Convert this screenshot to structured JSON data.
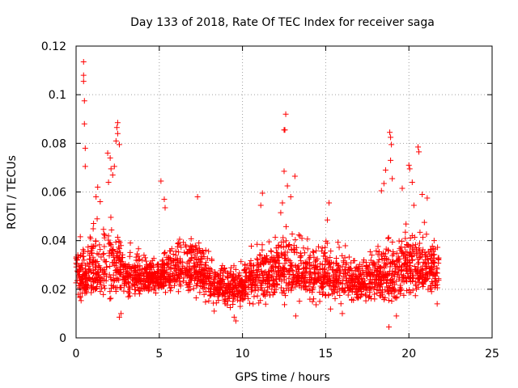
{
  "chart_data": {
    "type": "scatter",
    "title": "Day 133 of 2018, Rate Of TEC Index for receiver saga",
    "xlabel": "GPS time / hours",
    "ylabel": "ROTI / TECUs",
    "xlim": [
      0,
      25
    ],
    "ylim": [
      0,
      0.12
    ],
    "xticks": [
      "0",
      "5",
      "10",
      "15",
      "20",
      "25"
    ],
    "yticks": [
      "0",
      "0.02",
      "0.04",
      "0.06",
      "0.08",
      "0.1",
      "0.12"
    ],
    "grid": true,
    "marker": "plus",
    "color": "#ff0000",
    "series": [
      {
        "name": "ROTI",
        "points": [
          [
            0.45,
            0.1135
          ],
          [
            0.45,
            0.108
          ],
          [
            0.45,
            0.1055
          ],
          [
            0.5,
            0.0975
          ],
          [
            0.5,
            0.088
          ],
          [
            0.55,
            0.078
          ],
          [
            0.55,
            0.0705
          ],
          [
            2.5,
            0.0885
          ],
          [
            2.45,
            0.0865
          ],
          [
            2.5,
            0.084
          ],
          [
            2.4,
            0.081
          ],
          [
            2.6,
            0.0795
          ],
          [
            1.9,
            0.076
          ],
          [
            2.05,
            0.074
          ],
          [
            2.3,
            0.0705
          ],
          [
            2.1,
            0.0695
          ],
          [
            2.2,
            0.067
          ],
          [
            1.95,
            0.064
          ],
          [
            1.3,
            0.062
          ],
          [
            1.2,
            0.058
          ],
          [
            1.45,
            0.056
          ],
          [
            5.1,
            0.0645
          ],
          [
            5.3,
            0.057
          ],
          [
            5.35,
            0.0535
          ],
          [
            7.3,
            0.058
          ],
          [
            12.6,
            0.092
          ],
          [
            12.55,
            0.0855
          ],
          [
            12.5,
            0.0855
          ],
          [
            12.5,
            0.0685
          ],
          [
            12.7,
            0.0625
          ],
          [
            13.15,
            0.0665
          ],
          [
            12.9,
            0.058
          ],
          [
            12.4,
            0.0555
          ],
          [
            11.2,
            0.0595
          ],
          [
            11.1,
            0.0545
          ],
          [
            12.3,
            0.0515
          ],
          [
            15.2,
            0.0555
          ],
          [
            15.1,
            0.0485
          ],
          [
            18.85,
            0.0845
          ],
          [
            18.9,
            0.0825
          ],
          [
            18.95,
            0.0795
          ],
          [
            18.9,
            0.073
          ],
          [
            18.6,
            0.069
          ],
          [
            18.5,
            0.0635
          ],
          [
            19.0,
            0.0655
          ],
          [
            18.35,
            0.0605
          ],
          [
            20.55,
            0.0785
          ],
          [
            20.6,
            0.0765
          ],
          [
            20.0,
            0.071
          ],
          [
            20.05,
            0.0695
          ],
          [
            20.2,
            0.064
          ],
          [
            20.8,
            0.059
          ],
          [
            21.1,
            0.0575
          ],
          [
            19.6,
            0.0615
          ],
          [
            20.3,
            0.0545
          ],
          [
            18.8,
            0.0045
          ],
          [
            19.25,
            0.009
          ],
          [
            21.7,
            0.014
          ],
          [
            9.6,
            0.007
          ],
          [
            9.5,
            0.0085
          ],
          [
            2.6,
            0.0085
          ],
          [
            2.7,
            0.01
          ],
          [
            16.0,
            0.01
          ],
          [
            13.2,
            0.009
          ],
          [
            8.3,
            0.011
          ]
        ]
      }
    ],
    "dense_band": {
      "x_range": [
        0,
        21.8
      ],
      "envelope_hours": [
        0,
        1,
        2,
        3,
        4,
        5,
        6,
        7,
        8,
        9,
        10,
        11,
        12,
        13,
        14,
        15,
        16,
        17,
        18,
        19,
        20,
        21,
        21.8
      ],
      "lower": [
        0.014,
        0.012,
        0.011,
        0.012,
        0.014,
        0.016,
        0.016,
        0.014,
        0.012,
        0.01,
        0.011,
        0.012,
        0.012,
        0.013,
        0.012,
        0.011,
        0.011,
        0.012,
        0.012,
        0.01,
        0.012,
        0.014,
        0.016
      ],
      "upper": [
        0.042,
        0.05,
        0.055,
        0.04,
        0.038,
        0.036,
        0.044,
        0.048,
        0.038,
        0.034,
        0.034,
        0.042,
        0.046,
        0.052,
        0.044,
        0.046,
        0.04,
        0.038,
        0.04,
        0.046,
        0.05,
        0.052,
        0.044
      ],
      "median": [
        0.025,
        0.027,
        0.03,
        0.026,
        0.025,
        0.025,
        0.028,
        0.029,
        0.024,
        0.021,
        0.022,
        0.025,
        0.027,
        0.028,
        0.026,
        0.026,
        0.024,
        0.023,
        0.024,
        0.027,
        0.029,
        0.03,
        0.027
      ],
      "approx_count": 2400
    }
  }
}
